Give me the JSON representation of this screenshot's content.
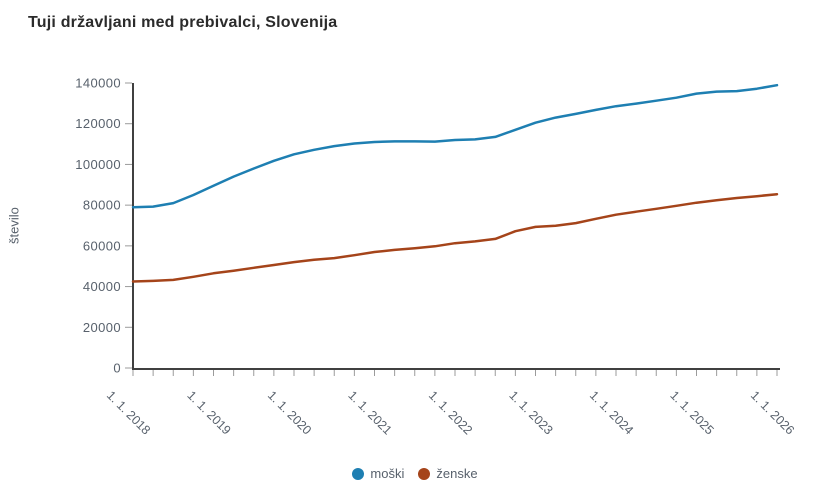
{
  "title": "Tuji državljani med prebivalci, Slovenija",
  "chart_data": {
    "type": "line",
    "title": "Tuji državljani med prebivalci, Slovenija",
    "ylabel": "število",
    "xlabel": "",
    "ylim": [
      0,
      140000
    ],
    "ytick_step": 20000,
    "y_tick_labels": [
      "0",
      "20000",
      "40000",
      "60000",
      "80000",
      "100000",
      "120000",
      "140000"
    ],
    "x_major_tick_labels": [
      "1. 1. 2018",
      "1. 1. 2019",
      "1. 1. 2020",
      "1. 1. 2021",
      "1. 1. 2022",
      "1. 1. 2023",
      "1. 1. 2024",
      "1. 1. 2025",
      "1. 1. 2026"
    ],
    "x_dates": [
      "1. 1. 2018",
      "1. 4. 2018",
      "1. 7. 2018",
      "1. 10. 2018",
      "1. 1. 2019",
      "1. 4. 2019",
      "1. 7. 2019",
      "1. 10. 2019",
      "1. 1. 2020",
      "1. 4. 2020",
      "1. 7. 2020",
      "1. 10. 2020",
      "1. 1. 2021",
      "1. 4. 2021",
      "1. 7. 2021",
      "1. 10. 2021",
      "1. 1. 2022",
      "1. 4. 2022",
      "1. 7. 2022",
      "1. 10. 2022",
      "1. 1. 2023",
      "1. 4. 2023",
      "1. 7. 2023",
      "1. 10. 2023",
      "1. 1. 2024",
      "1. 4. 2024",
      "1. 7. 2024",
      "1. 10. 2024",
      "1. 1. 2025",
      "1. 4. 2025",
      "1. 7. 2025",
      "1. 10. 2025",
      "1. 1. 2026"
    ],
    "minor_tick_interval": "quarterly",
    "grid": false,
    "legend_position": "bottom",
    "series": [
      {
        "name": "moški",
        "color": "#1e7fb2",
        "values": [
          79000,
          79300,
          81000,
          85000,
          89500,
          94000,
          98000,
          101800,
          105000,
          107200,
          109000,
          110300,
          111000,
          111300,
          111300,
          111200,
          112000,
          112300,
          113500,
          117000,
          120500,
          123000,
          124800,
          126800,
          128600,
          129900,
          131300,
          132800,
          134800,
          135800,
          136000,
          137200,
          138900
        ]
      },
      {
        "name": "ženske",
        "color": "#a5441a",
        "values": [
          42500,
          42800,
          43300,
          44800,
          46500,
          47800,
          49200,
          50600,
          52000,
          53200,
          54000,
          55400,
          57000,
          58000,
          58800,
          59800,
          61300,
          62200,
          63400,
          67200,
          69300,
          69900,
          71200,
          73300,
          75300,
          76800,
          78200,
          79700,
          81200,
          82400,
          83500,
          84400,
          85400
        ]
      }
    ],
    "colors": {
      "axis_line": "#404040",
      "tick_mark": "#9b9b9b",
      "tick_label": "#58616c",
      "title_text": "#2b2b2b",
      "background": "#ffffff"
    }
  }
}
